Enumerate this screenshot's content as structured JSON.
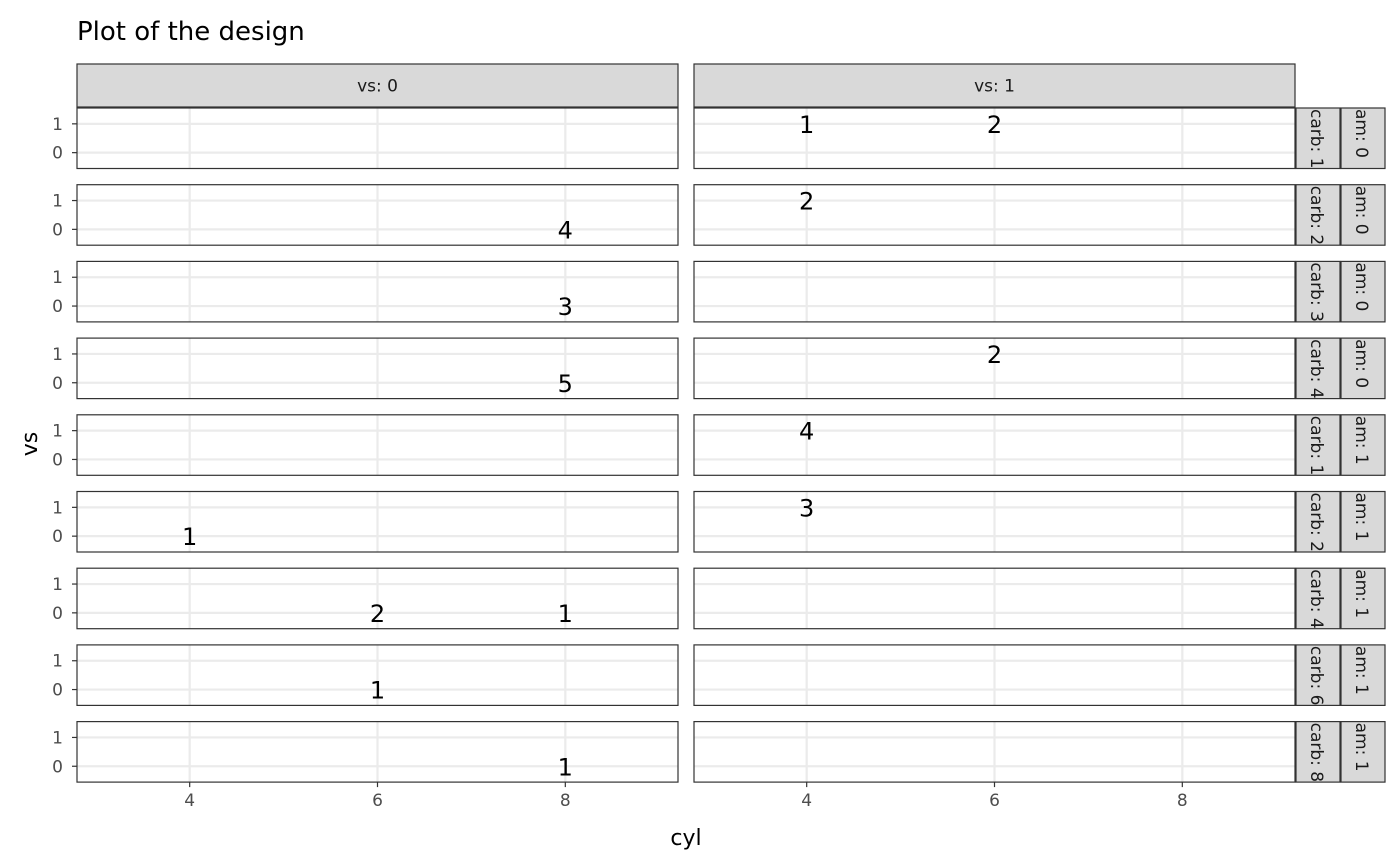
{
  "chart_data": {
    "type": "table",
    "title": "Plot of the design",
    "xlabel": "cyl",
    "ylabel": "vs",
    "x_ticks": [
      4,
      6,
      8
    ],
    "xlim": [
      2.8,
      9.2
    ],
    "y_ticks": [
      0,
      1
    ],
    "ylim": [
      -0.55,
      1.55
    ],
    "col_facets": [
      {
        "label": "vs: 0",
        "value": 0
      },
      {
        "label": "vs: 1",
        "value": 1
      }
    ],
    "row_facets": [
      {
        "carb_label": "carb: 1",
        "am_label": "am: 0"
      },
      {
        "carb_label": "carb: 2",
        "am_label": "am: 0"
      },
      {
        "carb_label": "carb: 3",
        "am_label": "am: 0"
      },
      {
        "carb_label": "carb: 4",
        "am_label": "am: 0"
      },
      {
        "carb_label": "carb: 1",
        "am_label": "am: 1"
      },
      {
        "carb_label": "carb: 2",
        "am_label": "am: 1"
      },
      {
        "carb_label": "carb: 4",
        "am_label": "am: 1"
      },
      {
        "carb_label": "carb: 6",
        "am_label": "am: 1"
      },
      {
        "carb_label": "carb: 8",
        "am_label": "am: 1"
      }
    ],
    "points": [
      {
        "row": 0,
        "col": 1,
        "x": 4,
        "y": 1,
        "label": "1"
      },
      {
        "row": 0,
        "col": 1,
        "x": 6,
        "y": 1,
        "label": "2"
      },
      {
        "row": 1,
        "col": 0,
        "x": 8,
        "y": 0,
        "label": "4"
      },
      {
        "row": 1,
        "col": 1,
        "x": 4,
        "y": 1,
        "label": "2"
      },
      {
        "row": 2,
        "col": 0,
        "x": 8,
        "y": 0,
        "label": "3"
      },
      {
        "row": 3,
        "col": 0,
        "x": 8,
        "y": 0,
        "label": "5"
      },
      {
        "row": 3,
        "col": 1,
        "x": 6,
        "y": 1,
        "label": "2"
      },
      {
        "row": 4,
        "col": 1,
        "x": 4,
        "y": 1,
        "label": "4"
      },
      {
        "row": 5,
        "col": 0,
        "x": 4,
        "y": 0,
        "label": "1"
      },
      {
        "row": 5,
        "col": 1,
        "x": 4,
        "y": 1,
        "label": "3"
      },
      {
        "row": 6,
        "col": 0,
        "x": 6,
        "y": 0,
        "label": "2"
      },
      {
        "row": 6,
        "col": 0,
        "x": 8,
        "y": 0,
        "label": "1"
      },
      {
        "row": 7,
        "col": 0,
        "x": 6,
        "y": 0,
        "label": "1"
      },
      {
        "row": 8,
        "col": 0,
        "x": 8,
        "y": 0,
        "label": "1"
      }
    ]
  }
}
